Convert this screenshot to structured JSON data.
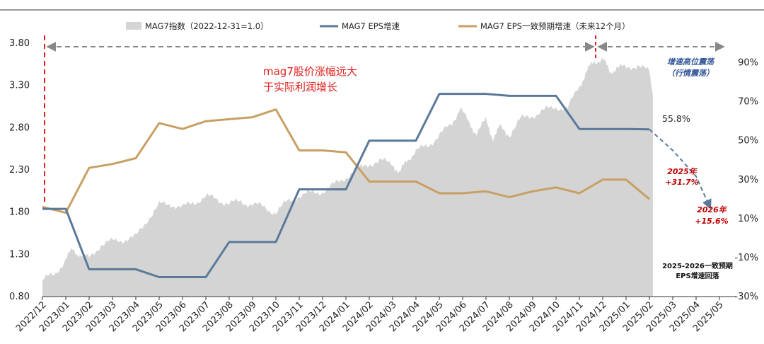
{
  "chart_data": {
    "type": "line",
    "legend": {
      "index": "MAG7指数（2022-12-31=1.0）",
      "eps": "MAG7 EPS增速",
      "consensus": "MAG7 EPS一致预期增速（未来12个月）",
      "placement": "top"
    },
    "categories": [
      "2022/12",
      "2023/01",
      "2023/02",
      "2023/03",
      "2023/04",
      "2023/05",
      "2023/06",
      "2023/07",
      "2023/08",
      "2023/09",
      "2023/10",
      "2023/11",
      "2023/12",
      "2024/01",
      "2024/02",
      "2024/03",
      "2024/04",
      "2024/05",
      "2024/06",
      "2024/07",
      "2024/08",
      "2024/09",
      "2024/10",
      "2024/11",
      "2024/12",
      "2025/01",
      "2025/02",
      "2025/03",
      "2025/04",
      "2025/05"
    ],
    "left_axis": {
      "min": 0.8,
      "max": 3.8,
      "ticks": [
        "0.80",
        "1.30",
        "1.80",
        "2.30",
        "2.80",
        "3.30",
        "3.80"
      ]
    },
    "right_axis": {
      "min": -30,
      "max": 100,
      "ticks": [
        "-30%",
        "-10%",
        "10%",
        "30%",
        "50%",
        "70%",
        "90%"
      ]
    },
    "series": [
      {
        "key": "index",
        "kind": "area",
        "axis": "left",
        "color": "#d4d4d4",
        "x": [
          0,
          0.5,
          1,
          1.3,
          1.6,
          2,
          2.5,
          3,
          3.5,
          4,
          4.5,
          5,
          5.5,
          6,
          6.5,
          7,
          7.5,
          8,
          8.5,
          9,
          9.5,
          10,
          10.5,
          11,
          11.5,
          12,
          12.5,
          13,
          13.5,
          14,
          14.5,
          15,
          15.3,
          15.6,
          16,
          16.5,
          17,
          17.5,
          17.9,
          18.3,
          18.6,
          19,
          19.3,
          19.6,
          20,
          20.5,
          21,
          21.5,
          22,
          22.5,
          23,
          23.3,
          23.6,
          24,
          24.3,
          24.6,
          25,
          25.5,
          26,
          26.15
        ],
        "values": [
          1.0,
          1.05,
          1.25,
          1.35,
          1.3,
          1.25,
          1.42,
          1.45,
          1.48,
          1.5,
          1.72,
          1.88,
          1.9,
          1.85,
          1.92,
          1.98,
          1.95,
          1.9,
          1.92,
          1.9,
          1.85,
          1.8,
          1.92,
          2.0,
          2.02,
          2.05,
          2.12,
          2.22,
          2.3,
          2.38,
          2.4,
          2.38,
          2.25,
          2.42,
          2.52,
          2.58,
          2.72,
          2.82,
          3.05,
          2.82,
          2.75,
          2.88,
          2.68,
          2.8,
          2.72,
          2.9,
          2.95,
          3.0,
          3.05,
          3.02,
          3.3,
          3.45,
          3.58,
          3.62,
          3.45,
          3.52,
          3.5,
          3.55,
          3.45,
          3.22
        ]
      },
      {
        "key": "eps",
        "kind": "line",
        "axis": "right",
        "color": "#5b7a99",
        "x": [
          0,
          1,
          2,
          3,
          4,
          5,
          6,
          7,
          8,
          9,
          10,
          11,
          12,
          13,
          14,
          15,
          16,
          17,
          18,
          19,
          20,
          21,
          22,
          23,
          24,
          25,
          26
        ],
        "values": [
          15,
          15,
          -16,
          -16,
          -16,
          -20,
          -20,
          -20,
          -2,
          -2,
          -2,
          25,
          25,
          25,
          50,
          50,
          50,
          74,
          74,
          74,
          73,
          73,
          73,
          56,
          56,
          56,
          55.8
        ]
      },
      {
        "key": "consensus",
        "kind": "line",
        "axis": "right",
        "color": "#c8a064",
        "x": [
          0,
          1,
          2,
          3,
          4,
          5,
          6,
          7,
          8,
          9,
          10,
          11,
          12,
          13,
          14,
          15,
          16,
          17,
          18,
          19,
          20,
          21,
          22,
          23,
          24,
          25,
          26
        ],
        "values": [
          16,
          13,
          36,
          38,
          41,
          59,
          56,
          60,
          61,
          62,
          66,
          45,
          45,
          44,
          29,
          29,
          29,
          23,
          23,
          24,
          21,
          24,
          26,
          23,
          30,
          30,
          20
        ]
      },
      {
        "key": "forecast",
        "kind": "dashed-line",
        "axis": "right",
        "color": "#5b7a99",
        "x": [
          26,
          27,
          28,
          28.6
        ],
        "values": [
          55.8,
          45,
          31.7,
          15.6
        ]
      }
    ],
    "annotations": {
      "main_note_line1": "mag7股价涨幅远大",
      "main_note_line2": "于实际利润增长",
      "high_note_line1": "增速高位震荡",
      "high_note_line2": "（行情震荡）",
      "last_eps_label": "55.8%",
      "f2025_line1": "2025年",
      "f2025_line2": "+31.7%",
      "f2026_line1": "2026年",
      "f2026_line2": "+15.6%",
      "pullback_line1": "2025-2026一致预期",
      "pullback_line2": "EPS增速回落"
    }
  }
}
